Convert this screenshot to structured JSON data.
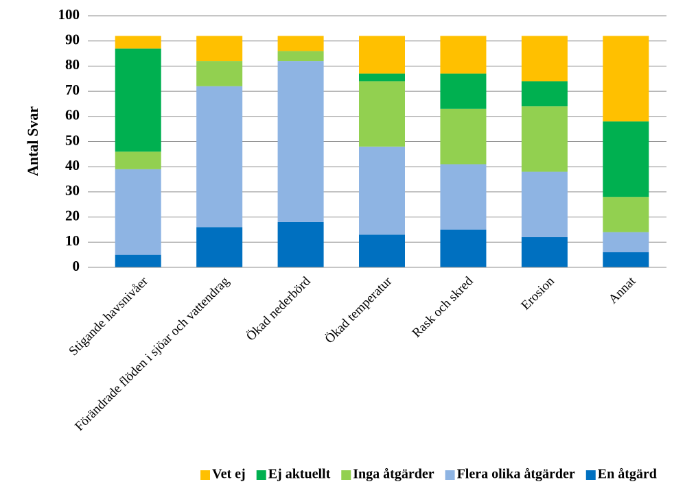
{
  "chart_data": {
    "type": "stacked_bar",
    "y_label": "Antal Svar",
    "categories": [
      "Stigande havsnivåer",
      "Förändrade flöden i sjöar och vattendrag",
      "Ökad nederbörd",
      "Ökad temperatur",
      "Rask och skred",
      "Erosion",
      "Annat"
    ],
    "series": [
      {
        "name": "En åtgärd",
        "color": "#0070c0",
        "values": [
          5,
          16,
          18,
          13,
          15,
          12,
          6
        ]
      },
      {
        "name": "Flera olika åtgärder",
        "color": "#8eb4e3",
        "values": [
          34,
          56,
          64,
          35,
          26,
          26,
          8
        ]
      },
      {
        "name": "Inga åtgärder",
        "color": "#92d050",
        "values": [
          7,
          10,
          4,
          26,
          22,
          26,
          14
        ]
      },
      {
        "name": "Ej aktuellt",
        "color": "#00b050",
        "values": [
          41,
          0,
          0,
          3,
          14,
          10,
          30
        ]
      },
      {
        "name": "Vet ej",
        "color": "#ffc000",
        "values": [
          5,
          10,
          6,
          15,
          15,
          18,
          34
        ]
      }
    ],
    "ylim": [
      0,
      100
    ],
    "yticks": [
      0,
      10,
      20,
      30,
      40,
      50,
      60,
      70,
      80,
      90,
      100
    ],
    "grid": true,
    "legend": "bottom"
  }
}
